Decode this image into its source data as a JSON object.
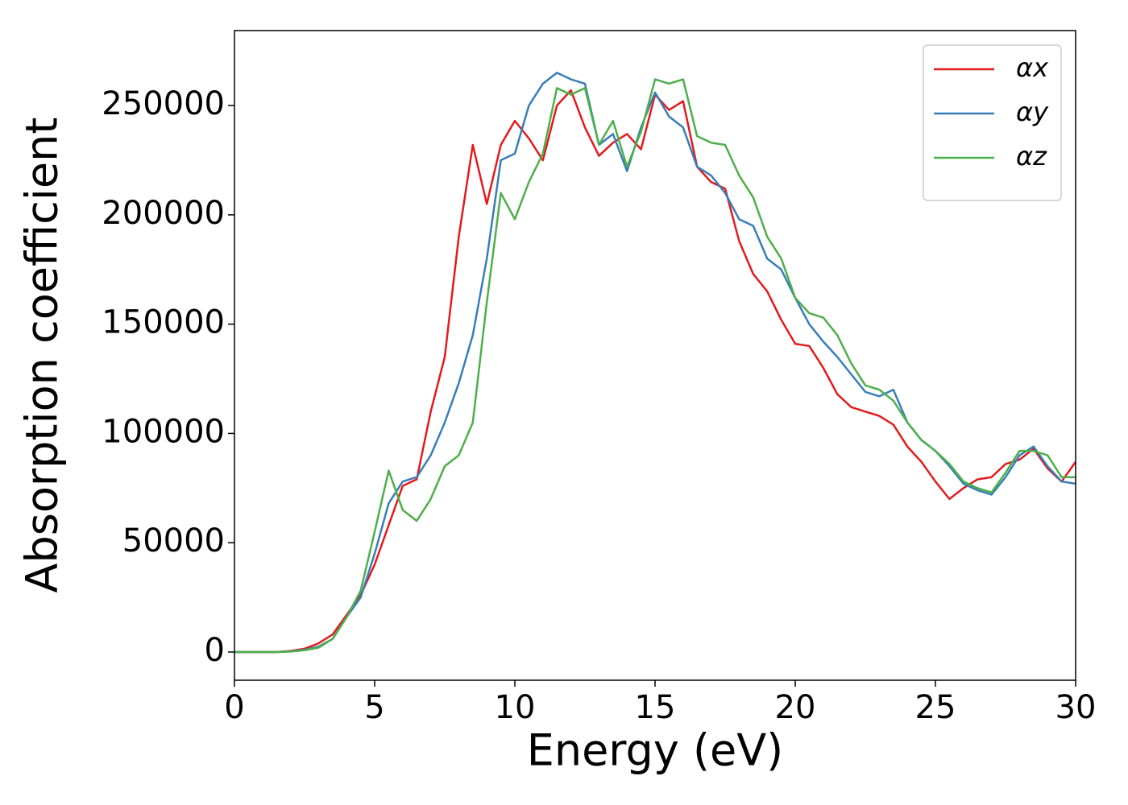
{
  "chart_data": {
    "type": "line",
    "xlabel": "Energy (eV)",
    "ylabel": "Absorption coefficient",
    "x": [
      0,
      0.5,
      1,
      1.5,
      2,
      2.5,
      3,
      3.5,
      4,
      4.5,
      5,
      5.5,
      6,
      6.5,
      7,
      7.5,
      8,
      8.5,
      9,
      9.5,
      10,
      10.5,
      11,
      11.5,
      12,
      12.5,
      13,
      13.5,
      14,
      14.5,
      15,
      15.5,
      16,
      16.5,
      17,
      17.5,
      18,
      18.5,
      19,
      19.5,
      20,
      20.5,
      21,
      21.5,
      22,
      22.5,
      23,
      23.5,
      24,
      24.5,
      25,
      25.5,
      26,
      26.5,
      27,
      27.5,
      28,
      28.5,
      29,
      29.5,
      30
    ],
    "series": [
      {
        "name": "αx",
        "color": "#e41a1c",
        "values": [
          0,
          0,
          0,
          0,
          500,
          1500,
          4000,
          8000,
          17000,
          26000,
          40000,
          58000,
          76000,
          79000,
          110000,
          135000,
          190000,
          232000,
          205000,
          232000,
          243000,
          235000,
          225000,
          250000,
          257000,
          240000,
          227000,
          233000,
          237000,
          230000,
          255000,
          248000,
          252000,
          222000,
          215000,
          212000,
          188000,
          173000,
          165000,
          152000,
          141000,
          140000,
          130000,
          118000,
          112000,
          110000,
          108000,
          104000,
          94000,
          87000,
          78000,
          70000,
          75000,
          79000,
          80000,
          86000,
          88000,
          93000,
          84000,
          78000,
          87000
        ]
      },
      {
        "name": "αy",
        "color": "#377eb8",
        "values": [
          0,
          0,
          0,
          0,
          300,
          1000,
          2500,
          6000,
          16000,
          25000,
          45000,
          68000,
          78000,
          80000,
          90000,
          105000,
          123000,
          145000,
          180000,
          225000,
          228000,
          250000,
          260000,
          265000,
          262000,
          260000,
          232000,
          237000,
          220000,
          240000,
          256000,
          245000,
          240000,
          222000,
          218000,
          210000,
          198000,
          195000,
          180000,
          175000,
          162000,
          150000,
          142000,
          135000,
          127000,
          119000,
          117000,
          120000,
          105000,
          97000,
          92000,
          85000,
          77000,
          74000,
          72000,
          80000,
          90000,
          94000,
          85000,
          78000,
          77000
        ]
      },
      {
        "name": "αz",
        "color": "#4daf4a",
        "values": [
          0,
          0,
          0,
          0,
          200,
          800,
          2000,
          6000,
          16000,
          28000,
          55000,
          83000,
          65000,
          60000,
          70000,
          85000,
          90000,
          105000,
          160000,
          210000,
          198000,
          215000,
          228000,
          258000,
          255000,
          258000,
          232000,
          243000,
          222000,
          238000,
          262000,
          260000,
          262000,
          236000,
          233000,
          232000,
          218000,
          208000,
          190000,
          180000,
          162000,
          155000,
          153000,
          145000,
          132000,
          122000,
          120000,
          115000,
          105000,
          97000,
          92000,
          86000,
          78000,
          75000,
          73000,
          82000,
          92000,
          92000,
          90000,
          80000,
          80000
        ]
      }
    ],
    "xlim": [
      0,
      30
    ],
    "ylim": [
      -12900,
      284300
    ],
    "xticks": [
      0,
      5,
      10,
      15,
      20,
      25,
      30
    ],
    "yticks": [
      0,
      50000,
      100000,
      150000,
      200000,
      250000
    ],
    "legend": "upper right"
  }
}
